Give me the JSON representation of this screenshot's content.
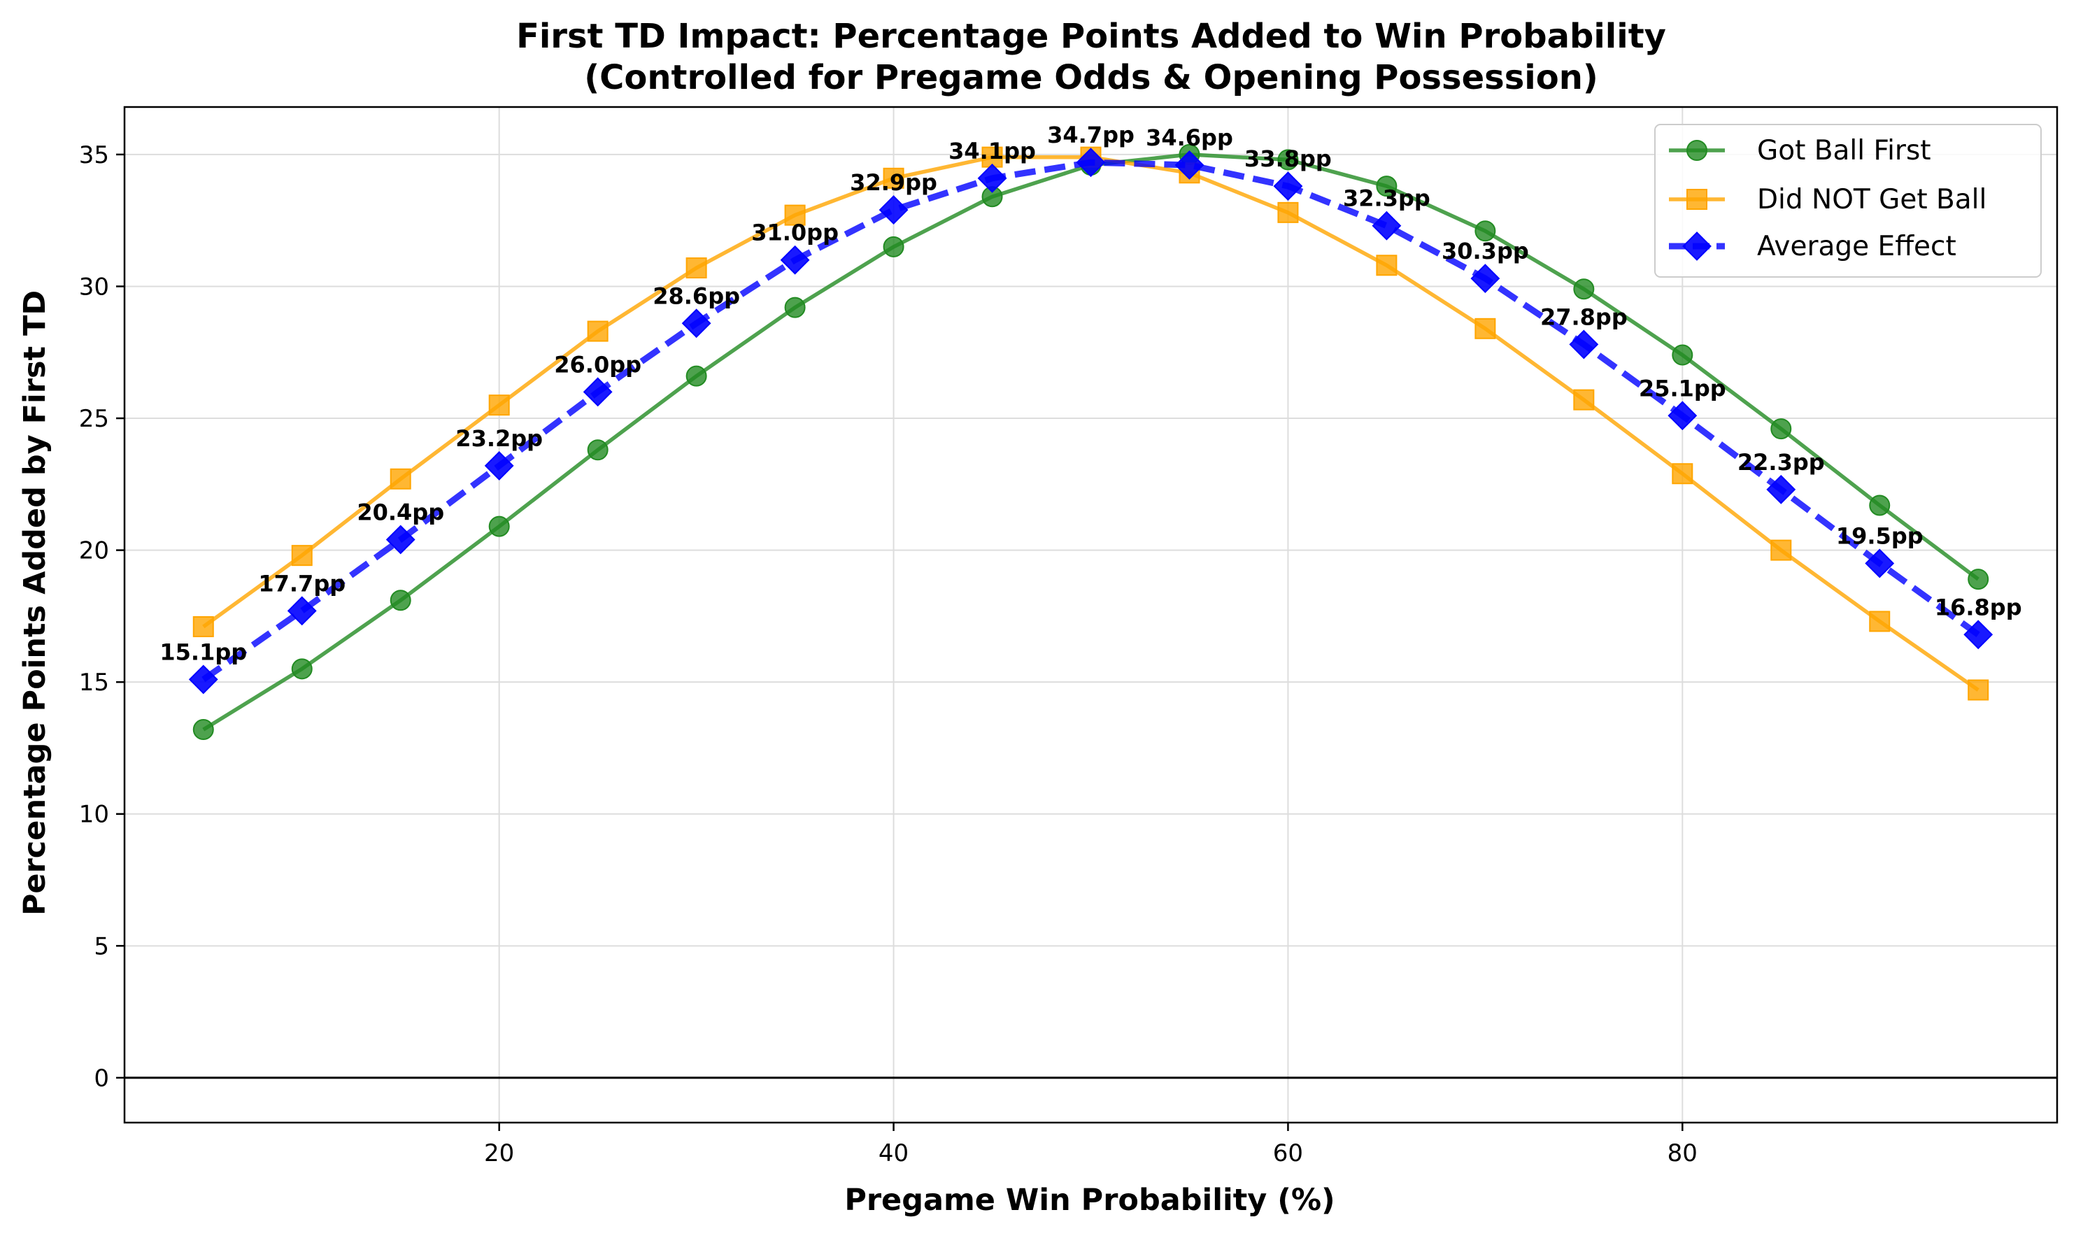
{
  "chart_data": {
    "type": "line",
    "title": "First TD Impact: Percentage Points Added to Win Probability",
    "subtitle": "(Controlled for Pregame Odds & Opening Possession)",
    "xlabel": "Pregame Win Probability (%)",
    "ylabel": "Percentage Points Added by First TD",
    "xlim": [
      1,
      99
    ],
    "ylim": [
      -1.7,
      36.8
    ],
    "xticks": [
      20,
      40,
      60,
      80
    ],
    "yticks": [
      0,
      5,
      10,
      15,
      20,
      25,
      30,
      35
    ],
    "grid": true,
    "legend_position": "top-right",
    "x": [
      5,
      10,
      15,
      20,
      25,
      30,
      35,
      40,
      45,
      50,
      55,
      60,
      65,
      70,
      75,
      80,
      85,
      90,
      95
    ],
    "series": [
      {
        "name": "Got Ball First",
        "color": "#228B22",
        "marker": "circle",
        "style": "solid",
        "values": [
          13.2,
          15.5,
          18.1,
          20.9,
          23.8,
          26.6,
          29.2,
          31.5,
          33.4,
          34.6,
          35.0,
          34.8,
          33.8,
          32.1,
          29.9,
          27.4,
          24.6,
          21.7,
          18.9
        ]
      },
      {
        "name": "Did NOT Get Ball",
        "color": "#FFA500",
        "marker": "square",
        "style": "solid",
        "values": [
          17.1,
          19.8,
          22.7,
          25.5,
          28.3,
          30.7,
          32.7,
          34.1,
          34.9,
          34.9,
          34.3,
          32.8,
          30.8,
          28.4,
          25.7,
          22.9,
          20.0,
          17.3,
          14.7
        ]
      },
      {
        "name": "Average Effect",
        "color": "#0000FF",
        "marker": "diamond",
        "style": "dashed",
        "values": [
          15.1,
          17.7,
          20.4,
          23.2,
          26.0,
          28.6,
          31.0,
          32.9,
          34.1,
          34.7,
          34.6,
          33.8,
          32.3,
          30.3,
          27.8,
          25.1,
          22.3,
          19.5,
          16.8
        ]
      }
    ],
    "annotations": [
      "15.1pp",
      "17.7pp",
      "20.4pp",
      "23.2pp",
      "26.0pp",
      "28.6pp",
      "31.0pp",
      "32.9pp",
      "34.1pp",
      "34.7pp",
      "34.6pp",
      "33.8pp",
      "32.3pp",
      "30.3pp",
      "27.8pp",
      "25.1pp",
      "22.3pp",
      "19.5pp",
      "16.8pp"
    ]
  }
}
